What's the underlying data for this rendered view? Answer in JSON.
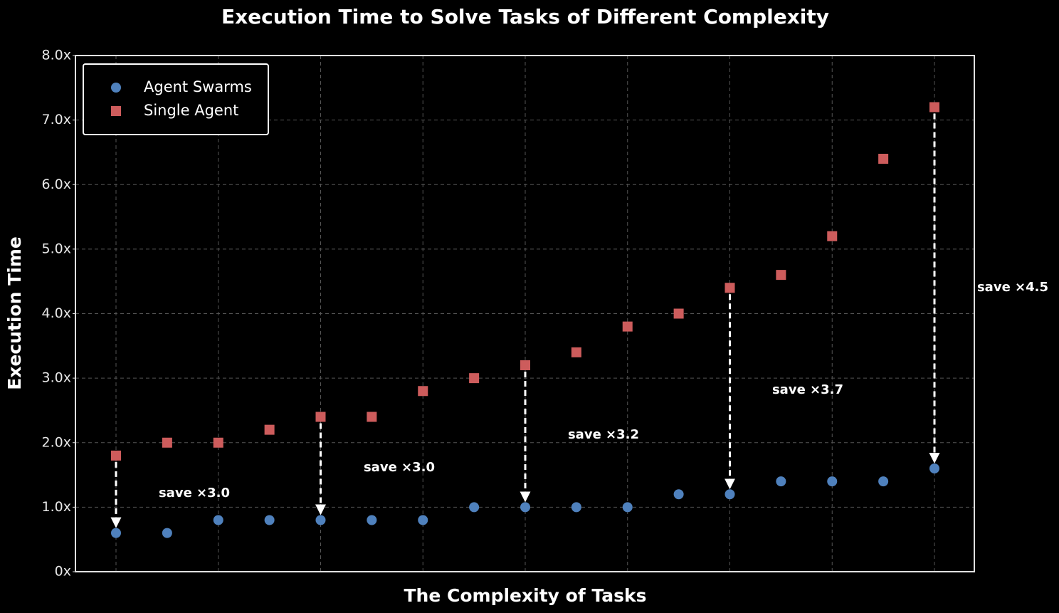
{
  "chart_data": {
    "type": "scatter",
    "title": "Execution Time to Solve Tasks of Different Complexity",
    "xlabel": "The Complexity of Tasks",
    "ylabel": "Execution Time",
    "categories": [
      null,
      null,
      null,
      null,
      null,
      null,
      null,
      null,
      null,
      null,
      null,
      null,
      null,
      null,
      null,
      null,
      null
    ],
    "series": [
      {
        "name": "Agent Swarms",
        "color": "#4f81bd",
        "marker": "o",
        "values": [
          0.6,
          0.6,
          0.8,
          0.8,
          0.8,
          0.8,
          0.8,
          1.0,
          1.0,
          1.0,
          1.0,
          1.2,
          1.2,
          1.4,
          1.4,
          1.4,
          1.6
        ]
      },
      {
        "name": "Single Agent",
        "color": "#cd5c5c",
        "marker": "s",
        "values": [
          1.8,
          2.0,
          2.0,
          2.2,
          2.4,
          2.4,
          2.8,
          3.0,
          3.2,
          3.4,
          3.8,
          4.0,
          4.4,
          4.6,
          5.2,
          6.4,
          7.2
        ]
      }
    ],
    "annotations": [
      "save ×3.0",
      "save ×3.0",
      "save ×3.2",
      "save ×3.7",
      "save ×4.5"
    ],
    "ylim": [
      0,
      8
    ],
    "yticks": [
      {
        "value": 0,
        "label": "0x"
      },
      {
        "value": 1,
        "label": "1.0x"
      },
      {
        "value": 2,
        "label": "2.0x"
      },
      {
        "value": 3,
        "label": "3.0x"
      },
      {
        "value": 4,
        "label": "4.0x"
      },
      {
        "value": 5,
        "label": "5.0x"
      },
      {
        "value": 6,
        "label": "6.0x"
      },
      {
        "value": 7,
        "label": "7.0x"
      },
      {
        "value": 8,
        "label": "8.0x"
      }
    ],
    "grid": true,
    "legend": "upper left"
  }
}
